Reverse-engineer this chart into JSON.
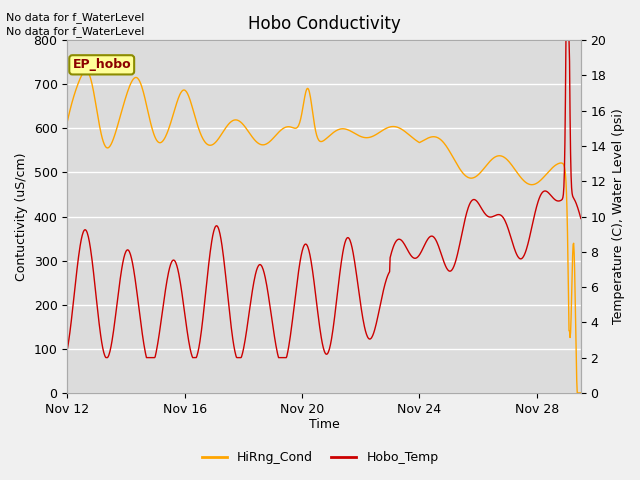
{
  "title": "Hobo Conductivity",
  "xlabel": "Time",
  "ylabel_left": "Contuctivity (uS/cm)",
  "ylabel_right": "Temperature (C), Water Level (psi)",
  "annotation_line1": "No data for f_WaterLevel",
  "annotation_line2": "No data for f_WaterLevel",
  "ep_hobo_label": "EP_hobo",
  "legend_entries": [
    "HiRng_Cond",
    "Hobo_Temp"
  ],
  "orange_color": "#FFA500",
  "red_color": "#CC0000",
  "ylim_left": [
    0,
    800
  ],
  "ylim_right": [
    0,
    20
  ],
  "yticks_left": [
    0,
    100,
    200,
    300,
    400,
    500,
    600,
    700,
    800
  ],
  "yticks_right": [
    0,
    2,
    4,
    6,
    8,
    10,
    12,
    14,
    16,
    18,
    20
  ],
  "xtick_positions": [
    0,
    4,
    8,
    12,
    16
  ],
  "xtick_labels": [
    "Nov 12",
    "Nov 16",
    "Nov 20",
    "Nov 24",
    "Nov 28"
  ],
  "xlim": [
    0,
    17.5
  ],
  "fig_bg": "#F0F0F0",
  "plot_bg": "#DCDCDC",
  "grid_color": "white",
  "ep_box_facecolor": "#FFFF99",
  "ep_box_edgecolor": "#8B8B00",
  "ep_text_color": "#8B0000"
}
